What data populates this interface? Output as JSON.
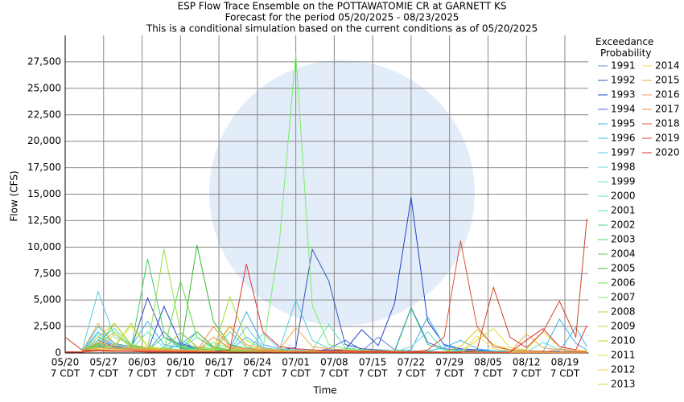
{
  "chart_data": {
    "type": "line",
    "title": "ESP Flow Trace Ensemble on the POTTAWATOMIE CR at GARNETT KS",
    "subtitle": "Forecast for the period 05/20/2025 - 08/23/2025",
    "note": "This is a conditional simulation based on the current conditions as of 05/20/2025",
    "x_label": "Time",
    "y_label": "Flow (CFS)",
    "legend_title": "Exceedance\nProbability",
    "legend_position": "right",
    "grid": true,
    "xtick_sublabel": "7 CDT",
    "xlim": [
      "05/20",
      "08/23"
    ],
    "xticks": [
      "05/20",
      "05/27",
      "06/03",
      "06/10",
      "06/17",
      "06/24",
      "07/01",
      "07/08",
      "07/15",
      "07/22",
      "07/29",
      "08/05",
      "08/12",
      "08/19"
    ],
    "ylim": [
      0,
      30000
    ],
    "yticks": [
      0,
      {
        "value": 2500,
        "label": "2,500"
      },
      {
        "value": 5000,
        "label": "5,000"
      },
      {
        "value": 7500,
        "label": "7,500"
      },
      {
        "value": 10000,
        "label": "10,000"
      },
      {
        "value": 12500,
        "label": "12,500"
      },
      {
        "value": 15000,
        "label": "15,000"
      },
      {
        "value": 17500,
        "label": "17,500"
      },
      {
        "value": 20000,
        "label": "20,000"
      },
      {
        "value": 22500,
        "label": "22,500"
      },
      {
        "value": 25000,
        "label": "25,000"
      },
      {
        "value": 27500,
        "label": "27,500"
      }
    ],
    "x": [
      "05/20",
      "05/23",
      "05/26",
      "05/29",
      "06/01",
      "06/04",
      "06/07",
      "06/10",
      "06/13",
      "06/16",
      "06/19",
      "06/22",
      "06/25",
      "06/28",
      "07/01",
      "07/04",
      "07/07",
      "07/10",
      "07/13",
      "07/16",
      "07/19",
      "07/22",
      "07/25",
      "07/28",
      "07/31",
      "08/03",
      "08/06",
      "08/09",
      "08/12",
      "08/15",
      "08/18",
      "08/21",
      "08/23"
    ],
    "series": [
      {
        "name": "1991",
        "color": "#6688cc",
        "values": [
          100,
          80,
          900,
          500,
          300,
          200,
          2000,
          400,
          300,
          200,
          150,
          100,
          100,
          200,
          150,
          100,
          300,
          200,
          150,
          1500,
          300,
          200,
          150,
          100,
          100,
          80,
          80,
          70,
          60,
          60,
          60,
          50,
          50
        ]
      },
      {
        "name": "1992",
        "color": "#3355bb",
        "values": [
          100,
          80,
          1200,
          600,
          400,
          5200,
          1500,
          800,
          400,
          300,
          200,
          150,
          150,
          300,
          500,
          9800,
          6800,
          800,
          400,
          300,
          200,
          150,
          100,
          100,
          80,
          70,
          60,
          60,
          50,
          50,
          50,
          40,
          40
        ]
      },
      {
        "name": "1993",
        "color": "#2244cc",
        "values": [
          100,
          80,
          700,
          400,
          300,
          200,
          4400,
          900,
          500,
          300,
          200,
          150,
          100,
          100,
          100,
          80,
          200,
          300,
          2200,
          700,
          4700,
          14700,
          3000,
          800,
          400,
          300,
          200,
          150,
          100,
          100,
          80,
          80,
          70
        ]
      },
      {
        "name": "1994",
        "color": "#4466dd",
        "values": [
          100,
          80,
          1500,
          700,
          400,
          300,
          300,
          200,
          200,
          150,
          100,
          100,
          100,
          150,
          100,
          100,
          400,
          1200,
          300,
          200,
          200,
          4300,
          1000,
          400,
          300,
          200,
          150,
          100,
          100,
          80,
          80,
          70,
          60
        ]
      },
      {
        "name": "1995",
        "color": "#44aaee",
        "values": [
          100,
          80,
          2000,
          900,
          500,
          400,
          300,
          800,
          2000,
          500,
          300,
          3900,
          800,
          400,
          300,
          200,
          150,
          150,
          100,
          100,
          100,
          300,
          3400,
          700,
          300,
          200,
          150,
          150,
          100,
          100,
          3200,
          900,
          300
        ]
      },
      {
        "name": "1996",
        "color": "#33bbee",
        "values": [
          100,
          80,
          2500,
          900,
          600,
          3000,
          800,
          500,
          400,
          300,
          200,
          1500,
          500,
          300,
          200,
          150,
          150,
          100,
          100,
          100,
          100,
          100,
          200,
          500,
          1200,
          400,
          200,
          150,
          100,
          100,
          200,
          2400,
          600
        ]
      },
      {
        "name": "1997",
        "color": "#55ccdd",
        "values": [
          100,
          80,
          5800,
          1500,
          800,
          500,
          400,
          300,
          300,
          200,
          200,
          2500,
          500,
          300,
          5000,
          1200,
          400,
          300,
          200,
          200,
          150,
          150,
          100,
          100,
          100,
          80,
          80,
          70,
          60,
          60,
          60,
          50,
          50
        ]
      },
      {
        "name": "1998",
        "color": "#55dddd",
        "values": [
          100,
          80,
          1800,
          700,
          400,
          300,
          500,
          1900,
          600,
          300,
          200,
          200,
          1800,
          400,
          300,
          200,
          150,
          150,
          100,
          100,
          100,
          100,
          100,
          80,
          80,
          70,
          70,
          60,
          60,
          1000,
          300,
          100,
          80
        ]
      },
      {
        "name": "1999",
        "color": "#66ddcc",
        "values": [
          100,
          80,
          1000,
          500,
          300,
          2000,
          500,
          300,
          1500,
          400,
          300,
          200,
          200,
          150,
          100,
          100,
          100,
          100,
          80,
          80,
          80,
          600,
          2000,
          300,
          150,
          100,
          100,
          80,
          80,
          70,
          70,
          60,
          60
        ]
      },
      {
        "name": "2000",
        "color": "#66ddbb",
        "values": [
          100,
          80,
          800,
          400,
          300,
          200,
          200,
          1200,
          400,
          300,
          200,
          200,
          150,
          150,
          100,
          300,
          2700,
          500,
          300,
          200,
          150,
          100,
          100,
          80,
          80,
          70,
          70,
          60,
          60,
          60,
          50,
          50,
          50
        ]
      },
      {
        "name": "2001",
        "color": "#55ddaa",
        "values": [
          100,
          80,
          1200,
          2300,
          600,
          400,
          300,
          300,
          200,
          200,
          2000,
          500,
          300,
          200,
          150,
          150,
          100,
          100,
          100,
          80,
          80,
          80,
          70,
          70,
          60,
          60,
          60,
          50,
          50,
          50,
          50,
          40,
          40
        ]
      },
      {
        "name": "2002",
        "color": "#44dd88",
        "values": [
          100,
          80,
          600,
          400,
          300,
          200,
          1500,
          500,
          300,
          200,
          200,
          150,
          150,
          100,
          100,
          100,
          100,
          80,
          80,
          80,
          80,
          4200,
          800,
          300,
          200,
          150,
          100,
          100,
          80,
          80,
          70,
          70,
          60
        ]
      },
      {
        "name": "2003",
        "color": "#44cc66",
        "values": [
          100,
          80,
          900,
          500,
          400,
          8900,
          2000,
          600,
          400,
          300,
          200,
          200,
          150,
          150,
          100,
          100,
          100,
          80,
          80,
          80,
          70,
          70,
          60,
          60,
          60,
          50,
          50,
          50,
          50,
          40,
          40,
          40,
          40
        ]
      },
      {
        "name": "2004",
        "color": "#55cc44",
        "values": [
          100,
          80,
          700,
          2800,
          700,
          400,
          300,
          300,
          2000,
          600,
          300,
          200,
          200,
          150,
          150,
          100,
          100,
          100,
          80,
          80,
          80,
          70,
          70,
          60,
          60,
          60,
          50,
          50,
          50,
          50,
          40,
          40,
          40
        ]
      },
      {
        "name": "2005",
        "color": "#33bb33",
        "values": [
          100,
          80,
          500,
          400,
          300,
          200,
          200,
          200,
          10200,
          3000,
          800,
          400,
          300,
          200,
          200,
          150,
          150,
          100,
          100,
          100,
          80,
          80,
          80,
          70,
          70,
          60,
          60,
          60,
          50,
          50,
          50,
          50,
          40
        ]
      },
      {
        "name": "2006",
        "color": "#66dd44",
        "values": [
          100,
          80,
          400,
          300,
          300,
          200,
          200,
          6800,
          1500,
          500,
          300,
          200,
          200,
          150,
          150,
          100,
          100,
          100,
          80,
          80,
          80,
          70,
          70,
          60,
          60,
          60,
          50,
          50,
          50,
          50,
          40,
          40,
          40
        ]
      },
      {
        "name": "2007",
        "color": "#77ee66",
        "values": [
          100,
          80,
          600,
          400,
          300,
          200,
          200,
          200,
          300,
          1000,
          400,
          300,
          300,
          10400,
          28300,
          4500,
          800,
          400,
          300,
          200,
          200,
          150,
          150,
          100,
          100,
          100,
          80,
          80,
          80,
          70,
          70,
          60,
          60
        ]
      },
      {
        "name": "2008",
        "color": "#99dd44",
        "values": [
          100,
          80,
          800,
          2000,
          500,
          400,
          9800,
          2000,
          600,
          400,
          300,
          200,
          200,
          150,
          150,
          100,
          100,
          100,
          80,
          80,
          80,
          70,
          70,
          60,
          60,
          60,
          50,
          50,
          50,
          50,
          40,
          40,
          40
        ]
      },
      {
        "name": "2009",
        "color": "#aadd33",
        "values": [
          100,
          80,
          1000,
          500,
          2800,
          600,
          400,
          300,
          300,
          200,
          5300,
          1200,
          400,
          300,
          200,
          200,
          150,
          150,
          100,
          100,
          100,
          80,
          80,
          80,
          70,
          70,
          60,
          60,
          60,
          50,
          50,
          50,
          50
        ]
      },
      {
        "name": "2010",
        "color": "#cccc22",
        "values": [
          100,
          80,
          1500,
          2800,
          800,
          500,
          300,
          300,
          200,
          1500,
          500,
          300,
          200,
          200,
          150,
          150,
          100,
          100,
          100,
          80,
          80,
          80,
          70,
          70,
          600,
          2200,
          800,
          300,
          200,
          150,
          100,
          100,
          80
        ]
      },
      {
        "name": "2011",
        "color": "#dddd33",
        "values": [
          100,
          80,
          300,
          800,
          2500,
          600,
          300,
          200,
          200,
          150,
          150,
          100,
          100,
          100,
          100,
          80,
          80,
          80,
          70,
          70,
          60,
          60,
          60,
          50,
          50,
          1200,
          2300,
          500,
          300,
          2000,
          600,
          300,
          200
        ]
      },
      {
        "name": "2012",
        "color": "#eecc33",
        "values": [
          100,
          80,
          200,
          300,
          500,
          300,
          200,
          200,
          150,
          150,
          100,
          100,
          100,
          80,
          80,
          80,
          70,
          70,
          60,
          60,
          60,
          50,
          50,
          50,
          50,
          40,
          40,
          40,
          40,
          40,
          30,
          30,
          30
        ]
      },
      {
        "name": "2013",
        "color": "#ddcc44",
        "values": [
          100,
          80,
          300,
          1800,
          500,
          300,
          200,
          2000,
          500,
          300,
          2600,
          600,
          300,
          200,
          150,
          150,
          100,
          100,
          100,
          80,
          80,
          80,
          70,
          70,
          60,
          60,
          60,
          50,
          50,
          50,
          50,
          40,
          40
        ]
      },
      {
        "name": "2014",
        "color": "#eedd55",
        "values": [
          100,
          80,
          400,
          300,
          300,
          200,
          200,
          150,
          150,
          100,
          100,
          100,
          80,
          80,
          80,
          70,
          70,
          60,
          60,
          60,
          50,
          50,
          50,
          50,
          40,
          1600,
          400,
          200,
          150,
          100,
          100,
          80,
          80
        ]
      },
      {
        "name": "2015",
        "color": "#eeaa44",
        "values": [
          100,
          80,
          2800,
          800,
          500,
          400,
          300,
          300,
          200,
          200,
          2500,
          800,
          400,
          300,
          2400,
          600,
          400,
          300,
          200,
          200,
          150,
          150,
          100,
          100,
          100,
          80,
          80,
          80,
          1800,
          500,
          300,
          200,
          150
        ]
      },
      {
        "name": "2016",
        "color": "#ee9966",
        "values": [
          100,
          80,
          500,
          400,
          300,
          200,
          200,
          200,
          150,
          1500,
          400,
          300,
          200,
          200,
          150,
          150,
          100,
          100,
          100,
          80,
          80,
          80,
          70,
          70,
          60,
          60,
          60,
          50,
          50,
          50,
          400,
          200,
          100
        ]
      },
      {
        "name": "2017",
        "color": "#ee8844",
        "values": [
          100,
          80,
          1000,
          500,
          400,
          300,
          300,
          200,
          200,
          2500,
          600,
          400,
          300,
          200,
          200,
          150,
          150,
          100,
          100,
          100,
          80,
          80,
          80,
          70,
          70,
          60,
          60,
          60,
          50,
          50,
          50,
          50,
          40
        ]
      },
      {
        "name": "2018",
        "color": "#dd5533",
        "values": [
          100,
          80,
          300,
          200,
          200,
          150,
          150,
          100,
          100,
          100,
          80,
          80,
          80,
          70,
          70,
          60,
          60,
          60,
          50,
          50,
          50,
          50,
          300,
          1500,
          10600,
          2500,
          600,
          300,
          200,
          150,
          100,
          100,
          80
        ]
      },
      {
        "name": "2019",
        "color": "#cc4422",
        "values": [
          1500,
          300,
          200,
          150,
          150,
          100,
          100,
          100,
          80,
          80,
          80,
          70,
          70,
          60,
          60,
          60,
          50,
          50,
          50,
          50,
          40,
          40,
          40,
          40,
          40,
          300,
          6200,
          1500,
          500,
          2000,
          4900,
          1500,
          12700
        ]
      },
      {
        "name": "2020",
        "color": "#dd3333",
        "values": [
          100,
          80,
          200,
          150,
          150,
          100,
          100,
          100,
          80,
          80,
          300,
          8400,
          2000,
          600,
          400,
          300,
          200,
          200,
          150,
          150,
          100,
          100,
          100,
          80,
          80,
          80,
          70,
          70,
          1200,
          2300,
          600,
          300,
          2600
        ]
      }
    ]
  }
}
